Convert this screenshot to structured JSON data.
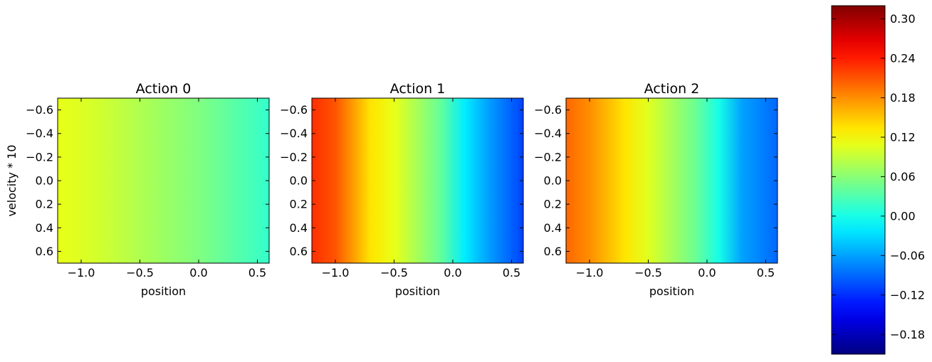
{
  "chart_data": [
    {
      "type": "heatmap",
      "title": "Action 0",
      "xlabel": "position",
      "ylabel": "velocity * 10",
      "xlim": [
        -1.2,
        0.6
      ],
      "ylim": [
        -0.7,
        0.7
      ],
      "y_inverted": true,
      "xticks": [
        -1.0,
        -0.5,
        0.0,
        0.5
      ],
      "xtick_labels": [
        "−1.0",
        "−0.5",
        "0.0",
        "0.5"
      ],
      "yticks": [
        -0.6,
        -0.4,
        -0.2,
        0.0,
        0.2,
        0.4,
        0.6
      ],
      "ytick_labels": [
        "−0.6",
        "−0.4",
        "−0.2",
        "0.0",
        "0.2",
        "0.4",
        "0.6"
      ],
      "position": [
        -1.2,
        -0.9,
        -0.6,
        -0.3,
        0.0,
        0.3,
        0.6
      ],
      "values": [
        0.11,
        0.1,
        0.085,
        0.07,
        0.055,
        0.035,
        0.015
      ]
    },
    {
      "type": "heatmap",
      "title": "Action 1",
      "xlabel": "position",
      "ylabel": "",
      "xlim": [
        -1.2,
        0.6
      ],
      "ylim": [
        -0.7,
        0.7
      ],
      "y_inverted": true,
      "xticks": [
        -1.0,
        -0.5,
        0.0,
        0.5
      ],
      "xtick_labels": [
        "−1.0",
        "−0.5",
        "0.0",
        "0.5"
      ],
      "yticks": [
        -0.6,
        -0.4,
        -0.2,
        0.0,
        0.2,
        0.4,
        0.6
      ],
      "ytick_labels": [
        "−0.6",
        "−0.4",
        "−0.2",
        "0.0",
        "0.2",
        "0.4",
        "0.6"
      ],
      "position": [
        -1.2,
        -1.0,
        -0.8,
        -0.7,
        -0.5,
        -0.3,
        -0.1,
        0.1,
        0.3,
        0.6
      ],
      "values": [
        0.23,
        0.21,
        0.16,
        0.135,
        0.11,
        0.075,
        0.04,
        -0.02,
        -0.06,
        -0.11
      ]
    },
    {
      "type": "heatmap",
      "title": "Action 2",
      "xlabel": "position",
      "ylabel": "",
      "xlim": [
        -1.2,
        0.6
      ],
      "ylim": [
        -0.7,
        0.7
      ],
      "y_inverted": true,
      "xticks": [
        -1.0,
        -0.5,
        0.0,
        0.5
      ],
      "xtick_labels": [
        "−1.0",
        "−0.5",
        "0.0",
        "0.5"
      ],
      "yticks": [
        -0.6,
        -0.4,
        -0.2,
        0.0,
        0.2,
        0.4,
        0.6
      ],
      "ytick_labels": [
        "−0.6",
        "−0.4",
        "−0.2",
        "0.0",
        "0.2",
        "0.4",
        "0.6"
      ],
      "position": [
        -1.2,
        -1.0,
        -0.8,
        -0.7,
        -0.5,
        -0.3,
        -0.1,
        0.1,
        0.3,
        0.6
      ],
      "values": [
        0.2,
        0.18,
        0.15,
        0.135,
        0.105,
        0.075,
        0.045,
        0.0,
        -0.06,
        -0.09
      ]
    }
  ],
  "colorbar": {
    "colormap": "jet",
    "range": [
      -0.21,
      0.32
    ],
    "ticks": [
      -0.18,
      -0.12,
      -0.06,
      0.0,
      0.06,
      0.12,
      0.18,
      0.24,
      0.3
    ],
    "tick_labels": [
      "−0.18",
      "−0.12",
      "−0.06",
      "0.00",
      "0.06",
      "0.12",
      "0.18",
      "0.24",
      "0.30"
    ]
  }
}
